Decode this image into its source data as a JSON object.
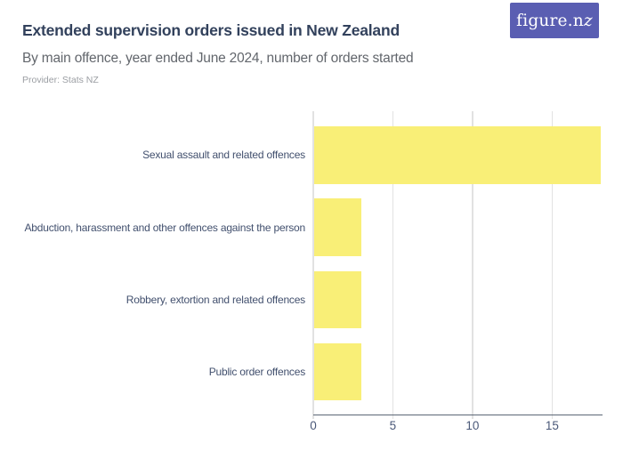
{
  "header": {
    "title": "Extended supervision orders issued in New Zealand",
    "subtitle": "By main offence, year ended June 2024, number of orders started",
    "provider": "Provider: Stats NZ",
    "logo": {
      "prefix": "figure.n",
      "suffix": "z",
      "full_text": "figure.nz"
    }
  },
  "chart_data": {
    "type": "bar",
    "orientation": "horizontal",
    "title": "Extended supervision orders issued in New Zealand",
    "subtitle": "By main offence, year ended June 2024, number of orders started",
    "provider": "Provider: Stats NZ",
    "categories": [
      "Sexual assault and related offences",
      "Abduction, harassment and other offences against the person",
      "Robbery, extortion and related offences",
      "Public order offences"
    ],
    "values": [
      18,
      3,
      3,
      3
    ],
    "xlabel": "",
    "ylabel": "",
    "xlim": [
      0,
      18
    ],
    "xticks": [
      0,
      5,
      10,
      15
    ],
    "xtick_labels": [
      "0",
      "5",
      "10",
      "15"
    ],
    "grid": true,
    "legend": false
  },
  "colors": {
    "bar_yellow": "#f9ef77",
    "logo_purple": "#5a5eb2",
    "title_navy": "#32415c",
    "subtitle_gray": "#62666c",
    "provider_gray": "#9b9ea3",
    "category_label_slate": "#42506e",
    "tick_label_slate": "#4a5878",
    "axis_line_gray": "#5b6676",
    "gridline_gray": "#e2e2e2",
    "background": "#ffffff"
  }
}
